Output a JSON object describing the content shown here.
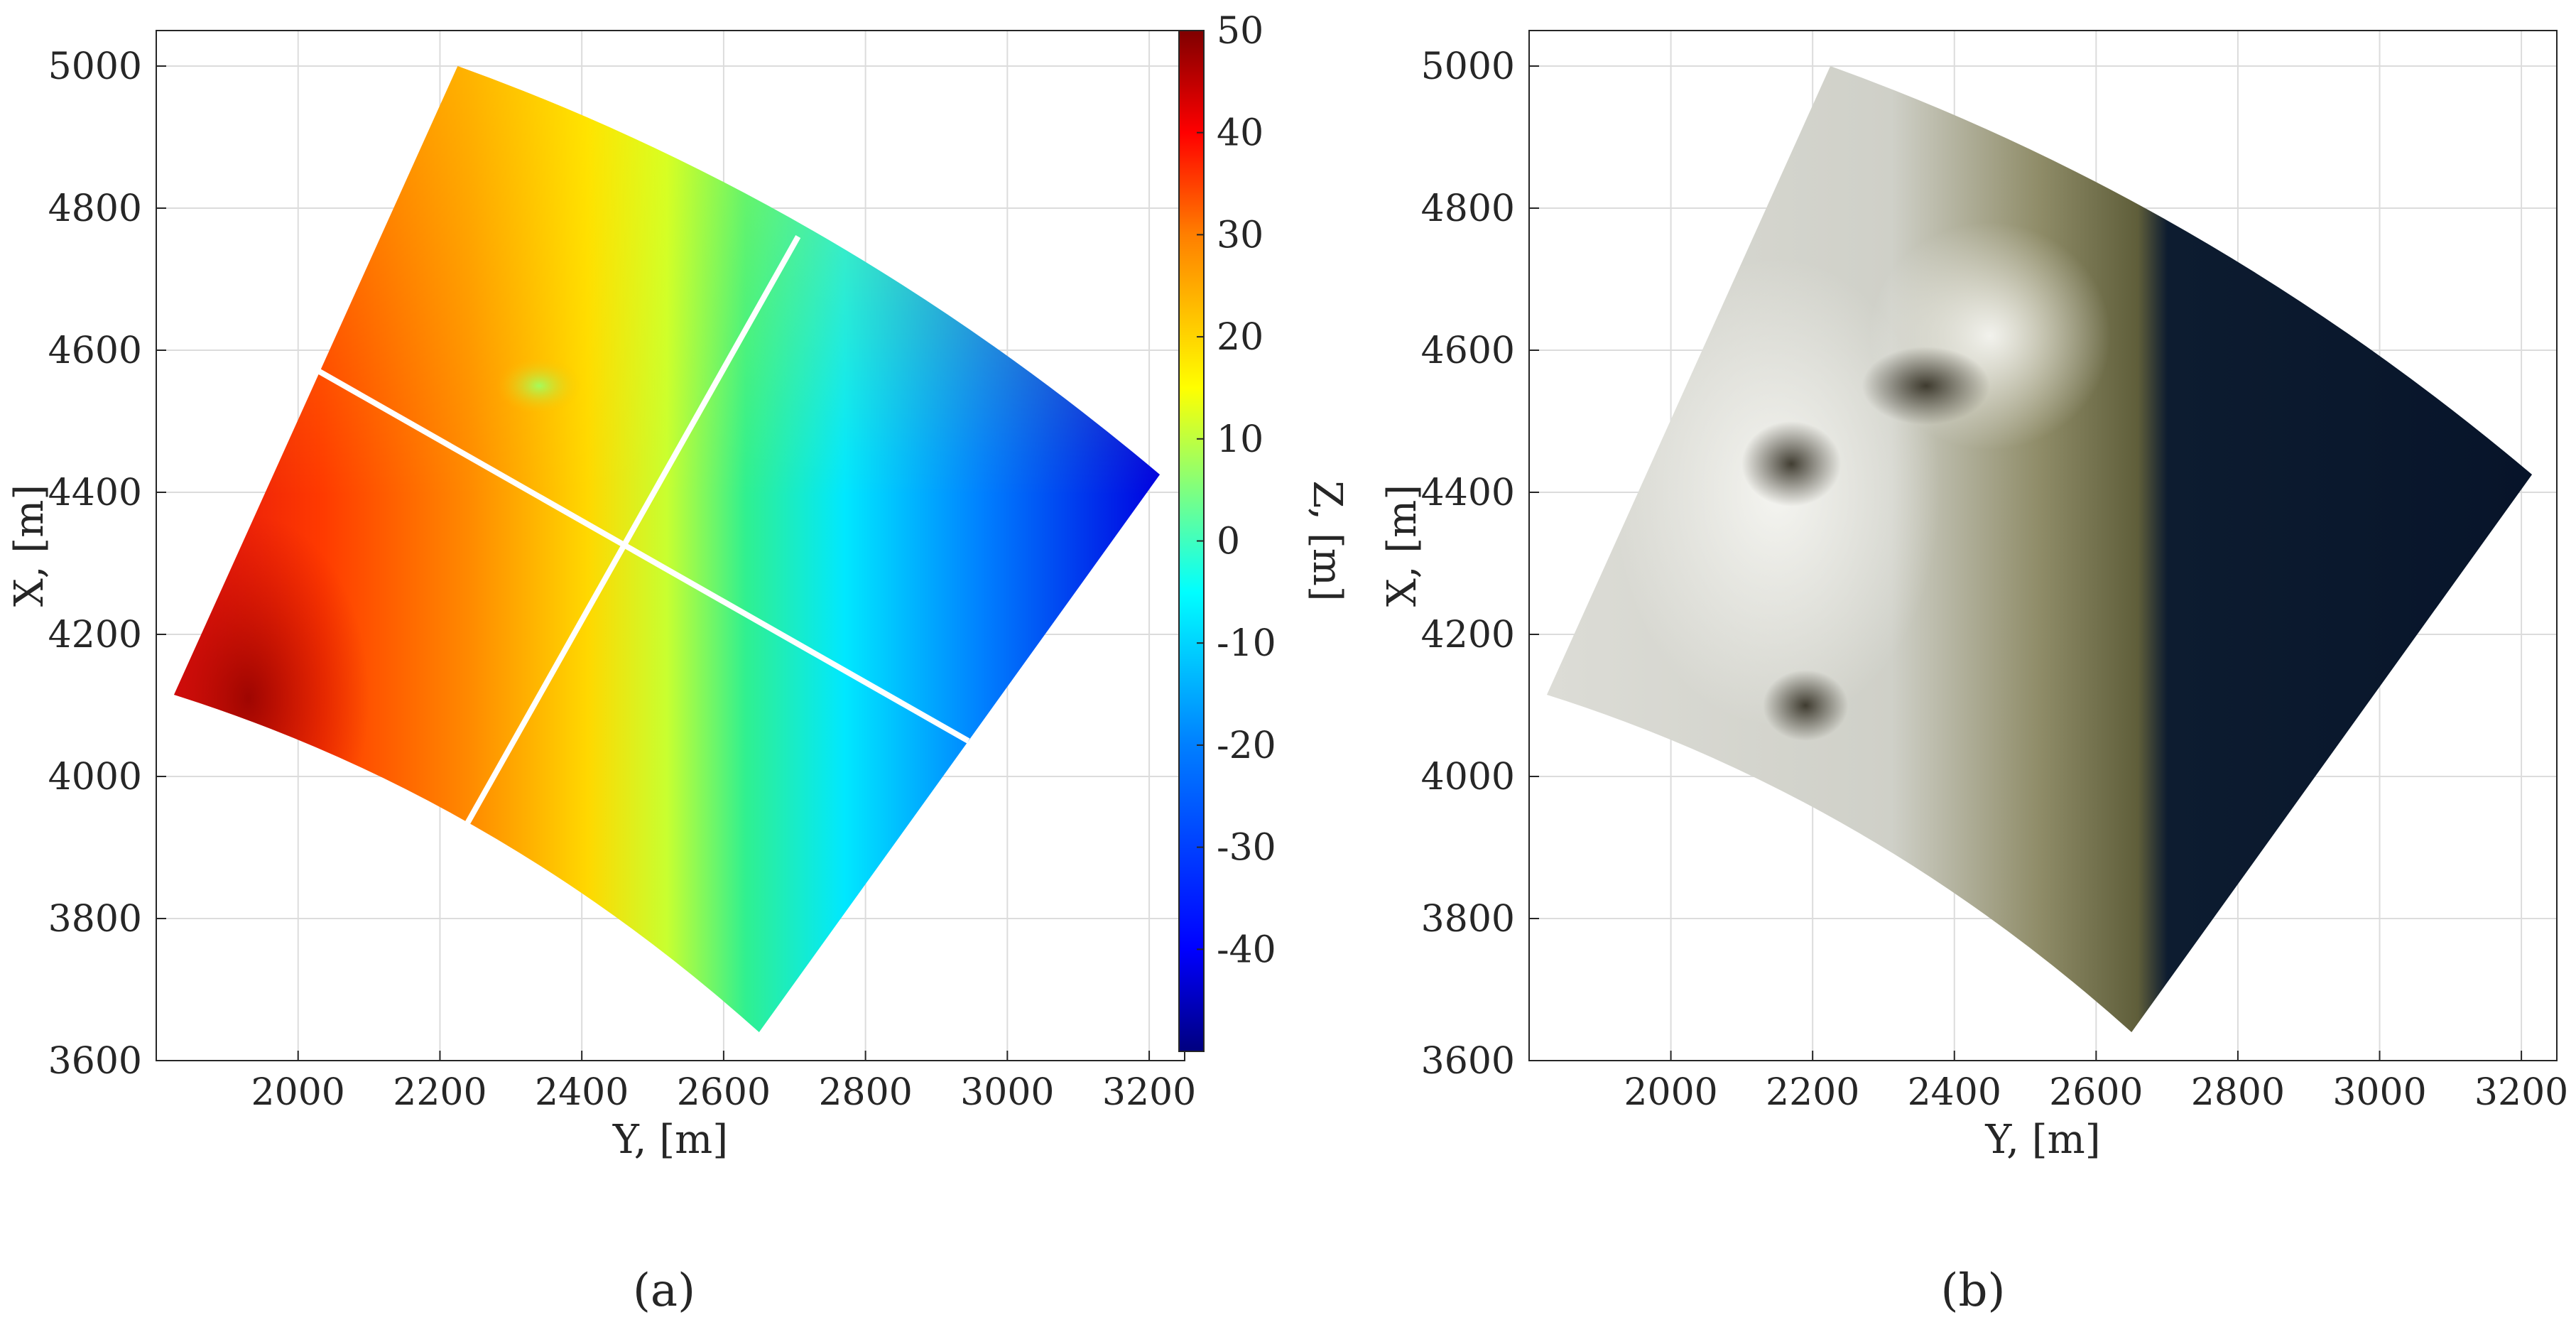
{
  "chart_data": [
    {
      "type": "heatmap",
      "panel_label": "(a)",
      "xlabel": "Y, [m]",
      "ylabel": "X, [m]",
      "xlim": [
        1800,
        3250
      ],
      "ylim": [
        3600,
        5050
      ],
      "x_ticks": [
        2000,
        2200,
        2400,
        2600,
        2800,
        3000,
        3200
      ],
      "y_ticks": [
        3600,
        3800,
        4000,
        4200,
        4400,
        4600,
        4800,
        5000
      ],
      "grid": true,
      "domain_corners": {
        "top_left": [
          2225,
          5000
        ],
        "right": [
          3215,
          4425
        ],
        "bottom": [
          2650,
          3640
        ],
        "left": [
          1825,
          4115
        ]
      },
      "section_lines": [
        {
          "from": [
            2030,
            4570
          ],
          "to": [
            2945,
            4050
          ]
        },
        {
          "from": [
            2705,
            4760
          ],
          "to": [
            2225,
            3910
          ]
        }
      ],
      "colorbar": {
        "label": "Z, [m]",
        "range": [
          -50,
          50
        ],
        "ticks": [
          50,
          40,
          30,
          20,
          10,
          0,
          -10,
          -20,
          -30,
          -40
        ],
        "colormap": [
          "#00007f",
          "#0000ff",
          "#007fff",
          "#00ffff",
          "#7fff7f",
          "#ffff00",
          "#ff7f00",
          "#ff0000",
          "#7f0000"
        ]
      },
      "z_trend": {
        "west": 35,
        "center": 10,
        "east": -40
      }
    },
    {
      "type": "image",
      "panel_label": "(b)",
      "xlabel": "Y, [m]",
      "ylabel": "X, [m]",
      "xlim": [
        1800,
        3250
      ],
      "ylim": [
        3600,
        5050
      ],
      "x_ticks": [
        2000,
        2200,
        2400,
        2600,
        2800,
        3000,
        3200
      ],
      "y_ticks": [
        3600,
        3800,
        4000,
        4200,
        4400,
        4600,
        4800,
        5000
      ],
      "grid": true,
      "colors": {
        "snow": "#e8e8e4",
        "land": "#6b6a45",
        "water": "#0b1a2e",
        "rock": "#3a3426"
      }
    }
  ]
}
